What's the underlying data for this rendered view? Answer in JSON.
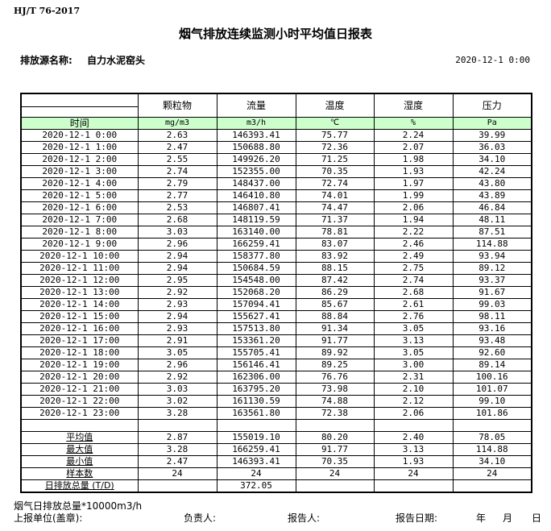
{
  "standard": "HJ/T  76-2017",
  "title": "烟气排放连续监测小时平均值日报表",
  "source": {
    "label": "排放源名称:",
    "value": "自力水泥窑头"
  },
  "report_time": "2020-12-1 0:00",
  "table": {
    "headers": [
      "",
      "颗粒物",
      "流量",
      "温度",
      "湿度",
      "压力"
    ],
    "units": [
      "时间",
      "mg/m3",
      "m3/h",
      "℃",
      "%",
      "Pa"
    ],
    "rows": [
      [
        "2020-12-1 0:00",
        "2.63",
        "146393.41",
        "75.77",
        "2.24",
        "39.99"
      ],
      [
        "2020-12-1 1:00",
        "2.47",
        "150688.80",
        "72.36",
        "2.07",
        "36.03"
      ],
      [
        "2020-12-1 2:00",
        "2.55",
        "149926.20",
        "71.25",
        "1.98",
        "34.10"
      ],
      [
        "2020-12-1 3:00",
        "2.74",
        "152355.00",
        "70.35",
        "1.93",
        "42.24"
      ],
      [
        "2020-12-1 4:00",
        "2.79",
        "148437.00",
        "72.74",
        "1.97",
        "43.80"
      ],
      [
        "2020-12-1 5:00",
        "2.77",
        "146410.80",
        "74.01",
        "1.99",
        "43.89"
      ],
      [
        "2020-12-1 6:00",
        "2.53",
        "146807.41",
        "74.47",
        "2.06",
        "46.84"
      ],
      [
        "2020-12-1 7:00",
        "2.68",
        "148119.59",
        "71.37",
        "1.94",
        "48.11"
      ],
      [
        "2020-12-1 8:00",
        "3.03",
        "163140.00",
        "78.81",
        "2.22",
        "87.51"
      ],
      [
        "2020-12-1 9:00",
        "2.96",
        "166259.41",
        "83.07",
        "2.46",
        "114.88"
      ],
      [
        "2020-12-1 10:00",
        "2.94",
        "158377.80",
        "83.92",
        "2.49",
        "93.94"
      ],
      [
        "2020-12-1 11:00",
        "2.94",
        "150684.59",
        "88.15",
        "2.75",
        "89.12"
      ],
      [
        "2020-12-1 12:00",
        "2.95",
        "154548.00",
        "87.42",
        "2.74",
        "93.37"
      ],
      [
        "2020-12-1 13:00",
        "2.92",
        "152068.20",
        "86.29",
        "2.68",
        "91.67"
      ],
      [
        "2020-12-1 14:00",
        "2.93",
        "157094.41",
        "85.67",
        "2.61",
        "99.03"
      ],
      [
        "2020-12-1 15:00",
        "2.94",
        "155627.41",
        "88.84",
        "2.76",
        "98.11"
      ],
      [
        "2020-12-1 16:00",
        "2.93",
        "157513.80",
        "91.34",
        "3.05",
        "93.16"
      ],
      [
        "2020-12-1 17:00",
        "2.91",
        "153361.20",
        "91.77",
        "3.13",
        "93.48"
      ],
      [
        "2020-12-1 18:00",
        "3.05",
        "155705.41",
        "89.92",
        "3.05",
        "92.60"
      ],
      [
        "2020-12-1 19:00",
        "2.96",
        "156146.41",
        "89.25",
        "3.00",
        "89.14"
      ],
      [
        "2020-12-1 20:00",
        "2.92",
        "162306.00",
        "76.76",
        "2.31",
        "100.16"
      ],
      [
        "2020-12-1 21:00",
        "3.03",
        "163795.20",
        "73.98",
        "2.10",
        "101.07"
      ],
      [
        "2020-12-1 22:00",
        "3.02",
        "161130.59",
        "74.88",
        "2.12",
        "99.10"
      ],
      [
        "2020-12-1 23:00",
        "3.28",
        "163561.80",
        "72.38",
        "2.06",
        "101.86"
      ]
    ],
    "summary": [
      [
        "平均值",
        "2.87",
        "155019.10",
        "80.20",
        "2.40",
        "78.05"
      ],
      [
        "最大值",
        "3.28",
        "166259.41",
        "91.77",
        "3.13",
        "114.88"
      ],
      [
        "最小值",
        "2.47",
        "146393.41",
        "70.35",
        "1.93",
        "34.10"
      ],
      [
        "样本数",
        "24",
        "24",
        "24",
        "24",
        "24"
      ],
      [
        "日排放总量 (T/D)",
        "",
        "372.05",
        "",
        "",
        ""
      ]
    ]
  },
  "footer": {
    "note": "烟气日排放总量*10000m3/h",
    "unit": "上报单位(盖章):",
    "person": "负责人:",
    "reporter": "报告人:",
    "date_label": "报告日期:",
    "year": "年",
    "month": "月",
    "day": "日"
  }
}
